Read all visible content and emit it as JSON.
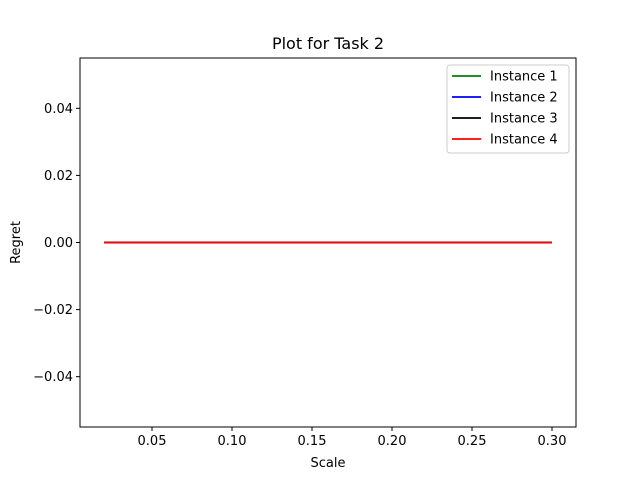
{
  "chart_data": {
    "type": "line",
    "title": "Plot for Task 2",
    "xlabel": "Scale",
    "ylabel": "Regret",
    "xlim": [
      0.005,
      0.315
    ],
    "ylim": [
      -0.055,
      0.055
    ],
    "xticks": [
      0.05,
      0.1,
      0.15,
      0.2,
      0.25,
      0.3
    ],
    "xtick_labels": [
      "0.05",
      "0.10",
      "0.15",
      "0.20",
      "0.25",
      "0.30"
    ],
    "yticks": [
      -0.04,
      -0.02,
      0.0,
      0.02,
      0.04
    ],
    "ytick_labels": [
      "−0.04",
      "−0.02",
      "0.00",
      "0.02",
      "0.04"
    ],
    "grid": false,
    "legend_position": "top-right",
    "x": [
      0.02,
      0.3
    ],
    "series": [
      {
        "name": "Instance 1",
        "color": "#008000",
        "values": [
          0.0,
          0.0
        ]
      },
      {
        "name": "Instance 2",
        "color": "#0000ff",
        "values": [
          0.0,
          0.0
        ]
      },
      {
        "name": "Instance 3",
        "color": "#000000",
        "values": [
          0.0,
          0.0
        ]
      },
      {
        "name": "Instance 4",
        "color": "#ff0000",
        "values": [
          0.0,
          0.0
        ]
      }
    ]
  }
}
